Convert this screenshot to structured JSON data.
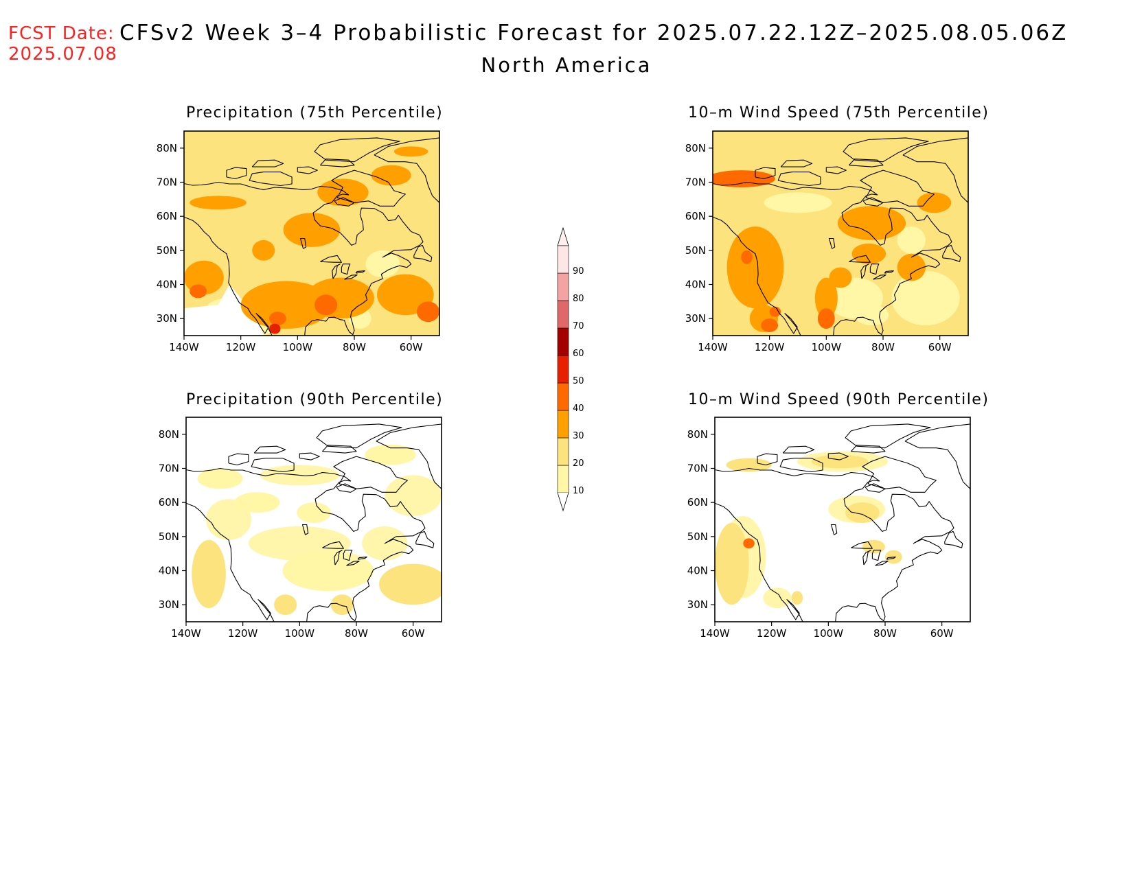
{
  "header": {
    "fcst_label": "FCST Date:",
    "fcst_date": "2025.07.08",
    "title": "CFSv2 Week 3–4 Probabilistic Forecast for 2025.07.22.12Z–2025.08.05.06Z",
    "subtitle": "North America"
  },
  "axes": {
    "lon_ticks": [
      "140W",
      "120W",
      "100W",
      "80W",
      "60W"
    ],
    "lat_ticks": [
      "80N",
      "70N",
      "60N",
      "50N",
      "40N",
      "30N"
    ],
    "lon_range": [
      "140W",
      "50W"
    ],
    "lat_range": [
      "25N",
      "85N"
    ]
  },
  "panels": [
    {
      "title": "Precipitation (75th Percentile)",
      "base_level": 20,
      "fill_level": "light"
    },
    {
      "title": "10–m Wind Speed (75th Percentile)",
      "base_level": 20,
      "fill_level": "light"
    },
    {
      "title": "Precipitation (90th Percentile)",
      "base_level": 0,
      "fill_level": "sparse"
    },
    {
      "title": "10–m Wind Speed (90th Percentile)",
      "base_level": 0,
      "fill_level": "sparse"
    }
  ],
  "colorbar": {
    "labels": [
      "10",
      "20",
      "30",
      "40",
      "50",
      "60",
      "70",
      "80",
      "90"
    ],
    "colors": [
      "#fff6a6",
      "#fde37e",
      "#ff9f00",
      "#ff6a00",
      "#e62000",
      "#a50000",
      "#e06868",
      "#f4a3a3",
      "#fde6e6"
    ]
  }
}
